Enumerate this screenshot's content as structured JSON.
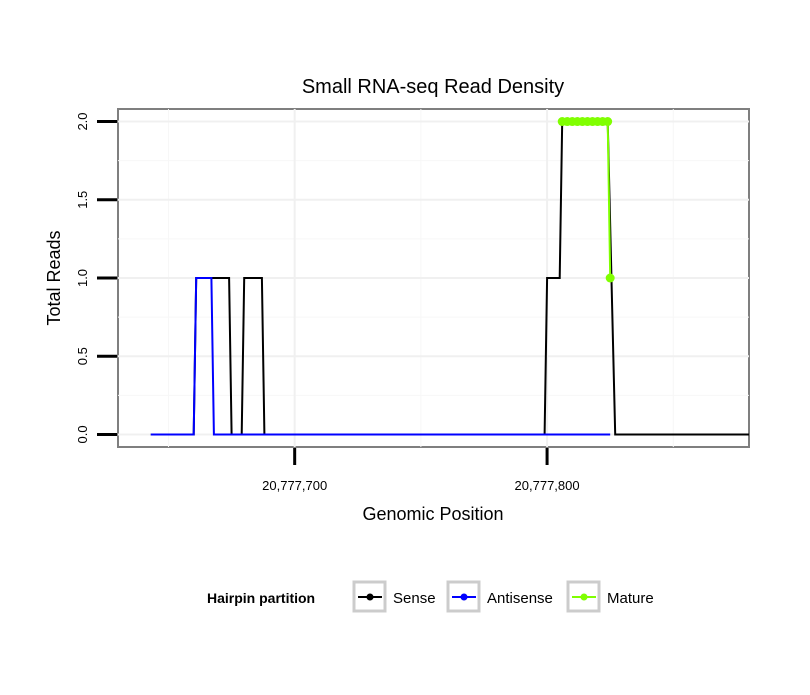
{
  "chart_data": {
    "type": "line",
    "title": "Small RNA-seq Read Density",
    "xlabel": "Genomic Position",
    "ylabel": "Total Reads",
    "xlim": [
      20777630,
      20777880
    ],
    "ylim": [
      -0.08,
      2.08
    ],
    "x_ticks": [
      20777700,
      20777800
    ],
    "x_tick_labels": [
      "20,777,700",
      "20,777,800"
    ],
    "y_ticks": [
      0.0,
      0.5,
      1.0,
      1.5,
      2.0
    ],
    "y_tick_labels": [
      "0.0",
      "0.5",
      "1.0",
      "1.5",
      "2.0"
    ],
    "grid": true,
    "legend": {
      "title": "Hairpin partition",
      "placement": "bottom",
      "entries": [
        "Sense",
        "Antisense",
        "Mature"
      ]
    },
    "series": [
      {
        "name": "Sense",
        "color": "#000000",
        "x": [
          20777643,
          20777660,
          20777661,
          20777667,
          20777674,
          20777675,
          20777676,
          20777679,
          20777680,
          20777687,
          20777688,
          20777799,
          20777800,
          20777805,
          20777806,
          20777824,
          20777827,
          20777880
        ],
        "y": [
          0,
          0,
          1,
          1,
          1,
          0,
          0,
          0,
          1,
          1,
          0,
          0,
          1,
          1,
          2,
          2,
          0,
          0
        ]
      },
      {
        "name": "Antisense",
        "color": "#0000ff",
        "x": [
          20777643,
          20777660,
          20777661,
          20777667,
          20777668,
          20777681,
          20777806,
          20777825
        ],
        "y": [
          0,
          0,
          1,
          1,
          0,
          0,
          0,
          0
        ]
      },
      {
        "name": "Mature",
        "color": "#80ff00",
        "x": [
          20777806,
          20777808,
          20777810,
          20777812,
          20777814,
          20777816,
          20777818,
          20777820,
          20777822,
          20777824,
          20777825
        ],
        "y": [
          2,
          2,
          2,
          2,
          2,
          2,
          2,
          2,
          2,
          2,
          1
        ]
      }
    ]
  }
}
